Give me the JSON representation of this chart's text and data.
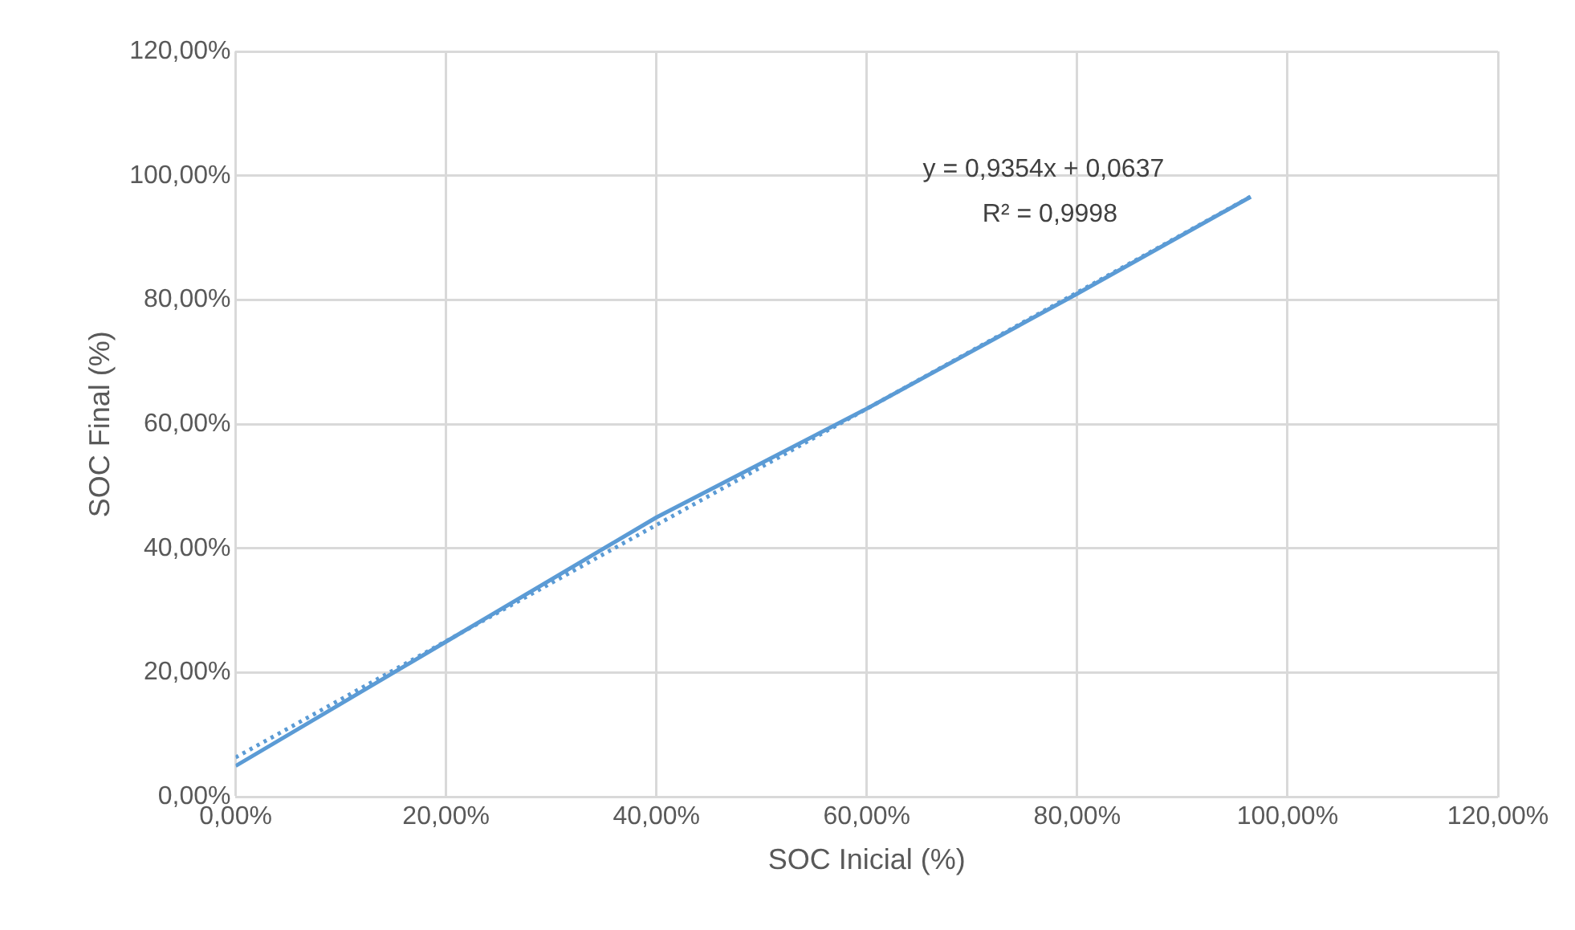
{
  "chart_data": {
    "type": "line",
    "xlabel": "SOC Inicial (%)",
    "ylabel": "SOC Final (%)",
    "xlim": [
      0,
      120
    ],
    "ylim": [
      0,
      120
    ],
    "xticks": [
      {
        "value": 0,
        "label": "0,00%"
      },
      {
        "value": 20,
        "label": "20,00%"
      },
      {
        "value": 40,
        "label": "40,00%"
      },
      {
        "value": 60,
        "label": "60,00%"
      },
      {
        "value": 80,
        "label": "80,00%"
      },
      {
        "value": 100,
        "label": "100,00%"
      },
      {
        "value": 120,
        "label": "120,00%"
      }
    ],
    "yticks": [
      {
        "value": 0,
        "label": "0,00%"
      },
      {
        "value": 20,
        "label": "20,00%"
      },
      {
        "value": 40,
        "label": "40,00%"
      },
      {
        "value": 60,
        "label": "60,00%"
      },
      {
        "value": 80,
        "label": "80,00%"
      },
      {
        "value": 100,
        "label": "100,00%"
      },
      {
        "value": 120,
        "label": "120,00%"
      }
    ],
    "grid": true,
    "legend": false,
    "marker": "none",
    "series": [
      {
        "color": "#5b9bd5",
        "x": [
          0,
          20,
          40,
          60,
          80,
          96.5
        ],
        "values": [
          5,
          25,
          45,
          62.5,
          81,
          96.6
        ],
        "line_style": "solid"
      },
      {
        "type": "line",
        "color": "#5b9bd5",
        "x": [
          0,
          96.5
        ],
        "values": [
          6.37,
          96.63
        ],
        "line_style": "dotted"
      }
    ],
    "annotations": [
      "y = 0,9354x + 0,0637",
      "R² = 0,9998"
    ]
  }
}
